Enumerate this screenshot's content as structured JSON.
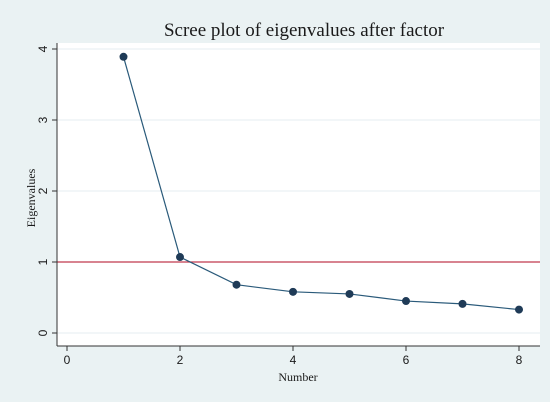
{
  "chart_data": {
    "type": "line",
    "title": "Scree plot of eigenvalues after factor",
    "xlabel": "Number",
    "ylabel": "Eigenvalues",
    "xlim": [
      0,
      8
    ],
    "ylim": [
      0,
      4
    ],
    "x_ticks": [
      0,
      2,
      4,
      6,
      8
    ],
    "y_ticks": [
      0,
      1,
      2,
      3,
      4
    ],
    "grid": "horizontal",
    "reference_line": {
      "y": 1,
      "color": "#c0394d"
    },
    "series": [
      {
        "x": [
          1,
          2,
          3,
          4,
          5,
          6,
          7,
          8
        ],
        "values": [
          3.89,
          1.07,
          0.68,
          0.58,
          0.55,
          0.45,
          0.41,
          0.33
        ],
        "color": "#2a5a7a",
        "marker_color": "#1f3b57"
      }
    ],
    "colors": {
      "outer_background": "#eaf2f3",
      "plot_background": "#ffffff",
      "grid": "#e6eef0",
      "axis": "#333333"
    }
  }
}
